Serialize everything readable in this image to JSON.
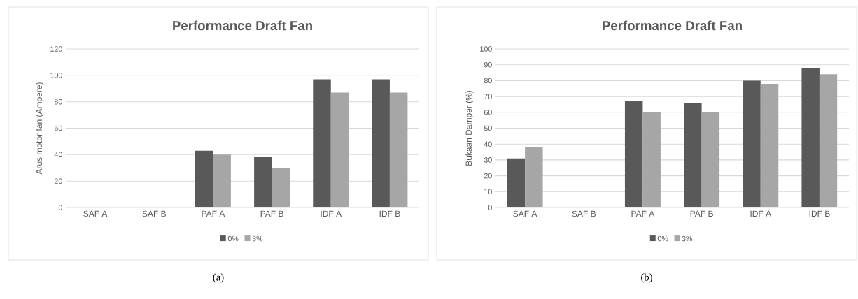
{
  "chart_data": [
    {
      "type": "bar",
      "title": "Performance Draft Fan",
      "ylabel": "Arus motor fan (Ampere)",
      "categories": [
        "SAF A",
        "SAF B",
        "PAF A",
        "PAF B",
        "IDF A",
        "IDF B"
      ],
      "series": [
        {
          "name": "0%",
          "color": "#595959",
          "values": [
            null,
            null,
            43,
            38,
            97,
            97
          ]
        },
        {
          "name": "3%",
          "color": "#a6a6a6",
          "values": [
            null,
            null,
            40,
            30,
            87,
            87
          ]
        }
      ],
      "ylim": [
        0,
        120
      ],
      "yticks": [
        0,
        20,
        40,
        60,
        80,
        100,
        120
      ],
      "grid": "y",
      "legend": "bottom",
      "annotations": [
        "(a)"
      ]
    },
    {
      "type": "bar",
      "title": "Performance Draft Fan",
      "ylabel": "Bukaan Damper (%)",
      "categories": [
        "SAF A",
        "SAF B",
        "PAF A",
        "PAF B",
        "IDF A",
        "IDF B"
      ],
      "series": [
        {
          "name": "0%",
          "color": "#595959",
          "values": [
            31,
            null,
            67,
            66,
            80,
            88
          ]
        },
        {
          "name": "3%",
          "color": "#a6a6a6",
          "values": [
            38,
            null,
            60,
            60,
            78,
            84
          ]
        }
      ],
      "ylim": [
        0,
        100
      ],
      "yticks": [
        0,
        10,
        20,
        30,
        40,
        50,
        60,
        70,
        80,
        90,
        100
      ],
      "grid": "y",
      "legend": "bottom",
      "annotations": [
        "(b)"
      ]
    }
  ]
}
